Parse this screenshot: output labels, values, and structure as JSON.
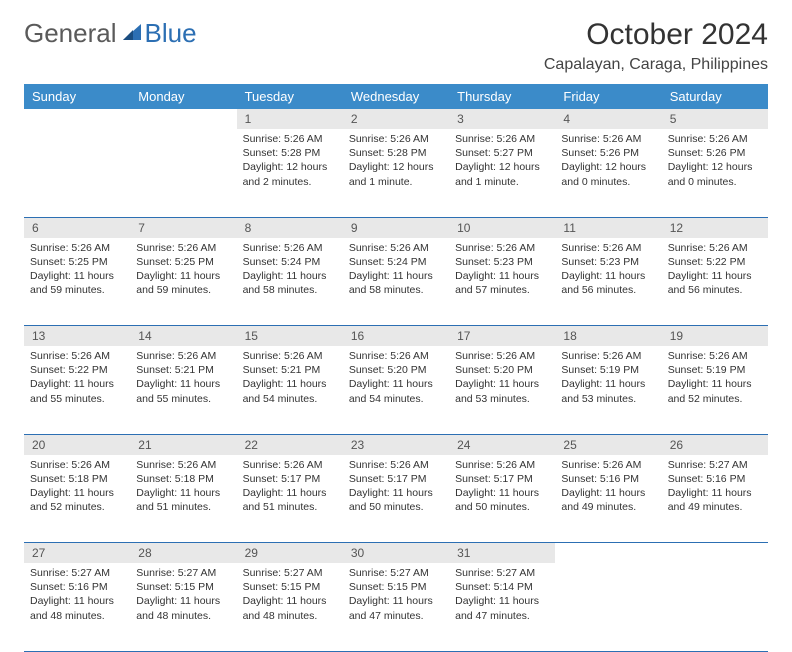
{
  "logo": {
    "part1": "General",
    "part2": "Blue"
  },
  "title": "October 2024",
  "location": "Capalayan, Caraga, Philippines",
  "colors": {
    "header_bg": "#3b8bc9",
    "header_text": "#ffffff",
    "daynum_bg": "#e8e8e8",
    "border": "#2c6fb3",
    "logo_gray": "#5a5a5a",
    "logo_blue": "#2c6fb3"
  },
  "weekdays": [
    "Sunday",
    "Monday",
    "Tuesday",
    "Wednesday",
    "Thursday",
    "Friday",
    "Saturday"
  ],
  "weeks": [
    [
      null,
      null,
      {
        "n": "1",
        "sr": "5:26 AM",
        "ss": "5:28 PM",
        "dl": "12 hours and 2 minutes."
      },
      {
        "n": "2",
        "sr": "5:26 AM",
        "ss": "5:28 PM",
        "dl": "12 hours and 1 minute."
      },
      {
        "n": "3",
        "sr": "5:26 AM",
        "ss": "5:27 PM",
        "dl": "12 hours and 1 minute."
      },
      {
        "n": "4",
        "sr": "5:26 AM",
        "ss": "5:26 PM",
        "dl": "12 hours and 0 minutes."
      },
      {
        "n": "5",
        "sr": "5:26 AM",
        "ss": "5:26 PM",
        "dl": "12 hours and 0 minutes."
      }
    ],
    [
      {
        "n": "6",
        "sr": "5:26 AM",
        "ss": "5:25 PM",
        "dl": "11 hours and 59 minutes."
      },
      {
        "n": "7",
        "sr": "5:26 AM",
        "ss": "5:25 PM",
        "dl": "11 hours and 59 minutes."
      },
      {
        "n": "8",
        "sr": "5:26 AM",
        "ss": "5:24 PM",
        "dl": "11 hours and 58 minutes."
      },
      {
        "n": "9",
        "sr": "5:26 AM",
        "ss": "5:24 PM",
        "dl": "11 hours and 58 minutes."
      },
      {
        "n": "10",
        "sr": "5:26 AM",
        "ss": "5:23 PM",
        "dl": "11 hours and 57 minutes."
      },
      {
        "n": "11",
        "sr": "5:26 AM",
        "ss": "5:23 PM",
        "dl": "11 hours and 56 minutes."
      },
      {
        "n": "12",
        "sr": "5:26 AM",
        "ss": "5:22 PM",
        "dl": "11 hours and 56 minutes."
      }
    ],
    [
      {
        "n": "13",
        "sr": "5:26 AM",
        "ss": "5:22 PM",
        "dl": "11 hours and 55 minutes."
      },
      {
        "n": "14",
        "sr": "5:26 AM",
        "ss": "5:21 PM",
        "dl": "11 hours and 55 minutes."
      },
      {
        "n": "15",
        "sr": "5:26 AM",
        "ss": "5:21 PM",
        "dl": "11 hours and 54 minutes."
      },
      {
        "n": "16",
        "sr": "5:26 AM",
        "ss": "5:20 PM",
        "dl": "11 hours and 54 minutes."
      },
      {
        "n": "17",
        "sr": "5:26 AM",
        "ss": "5:20 PM",
        "dl": "11 hours and 53 minutes."
      },
      {
        "n": "18",
        "sr": "5:26 AM",
        "ss": "5:19 PM",
        "dl": "11 hours and 53 minutes."
      },
      {
        "n": "19",
        "sr": "5:26 AM",
        "ss": "5:19 PM",
        "dl": "11 hours and 52 minutes."
      }
    ],
    [
      {
        "n": "20",
        "sr": "5:26 AM",
        "ss": "5:18 PM",
        "dl": "11 hours and 52 minutes."
      },
      {
        "n": "21",
        "sr": "5:26 AM",
        "ss": "5:18 PM",
        "dl": "11 hours and 51 minutes."
      },
      {
        "n": "22",
        "sr": "5:26 AM",
        "ss": "5:17 PM",
        "dl": "11 hours and 51 minutes."
      },
      {
        "n": "23",
        "sr": "5:26 AM",
        "ss": "5:17 PM",
        "dl": "11 hours and 50 minutes."
      },
      {
        "n": "24",
        "sr": "5:26 AM",
        "ss": "5:17 PM",
        "dl": "11 hours and 50 minutes."
      },
      {
        "n": "25",
        "sr": "5:26 AM",
        "ss": "5:16 PM",
        "dl": "11 hours and 49 minutes."
      },
      {
        "n": "26",
        "sr": "5:27 AM",
        "ss": "5:16 PM",
        "dl": "11 hours and 49 minutes."
      }
    ],
    [
      {
        "n": "27",
        "sr": "5:27 AM",
        "ss": "5:16 PM",
        "dl": "11 hours and 48 minutes."
      },
      {
        "n": "28",
        "sr": "5:27 AM",
        "ss": "5:15 PM",
        "dl": "11 hours and 48 minutes."
      },
      {
        "n": "29",
        "sr": "5:27 AM",
        "ss": "5:15 PM",
        "dl": "11 hours and 48 minutes."
      },
      {
        "n": "30",
        "sr": "5:27 AM",
        "ss": "5:15 PM",
        "dl": "11 hours and 47 minutes."
      },
      {
        "n": "31",
        "sr": "5:27 AM",
        "ss": "5:14 PM",
        "dl": "11 hours and 47 minutes."
      },
      null,
      null
    ]
  ],
  "labels": {
    "sunrise": "Sunrise:",
    "sunset": "Sunset:",
    "daylight": "Daylight:"
  }
}
